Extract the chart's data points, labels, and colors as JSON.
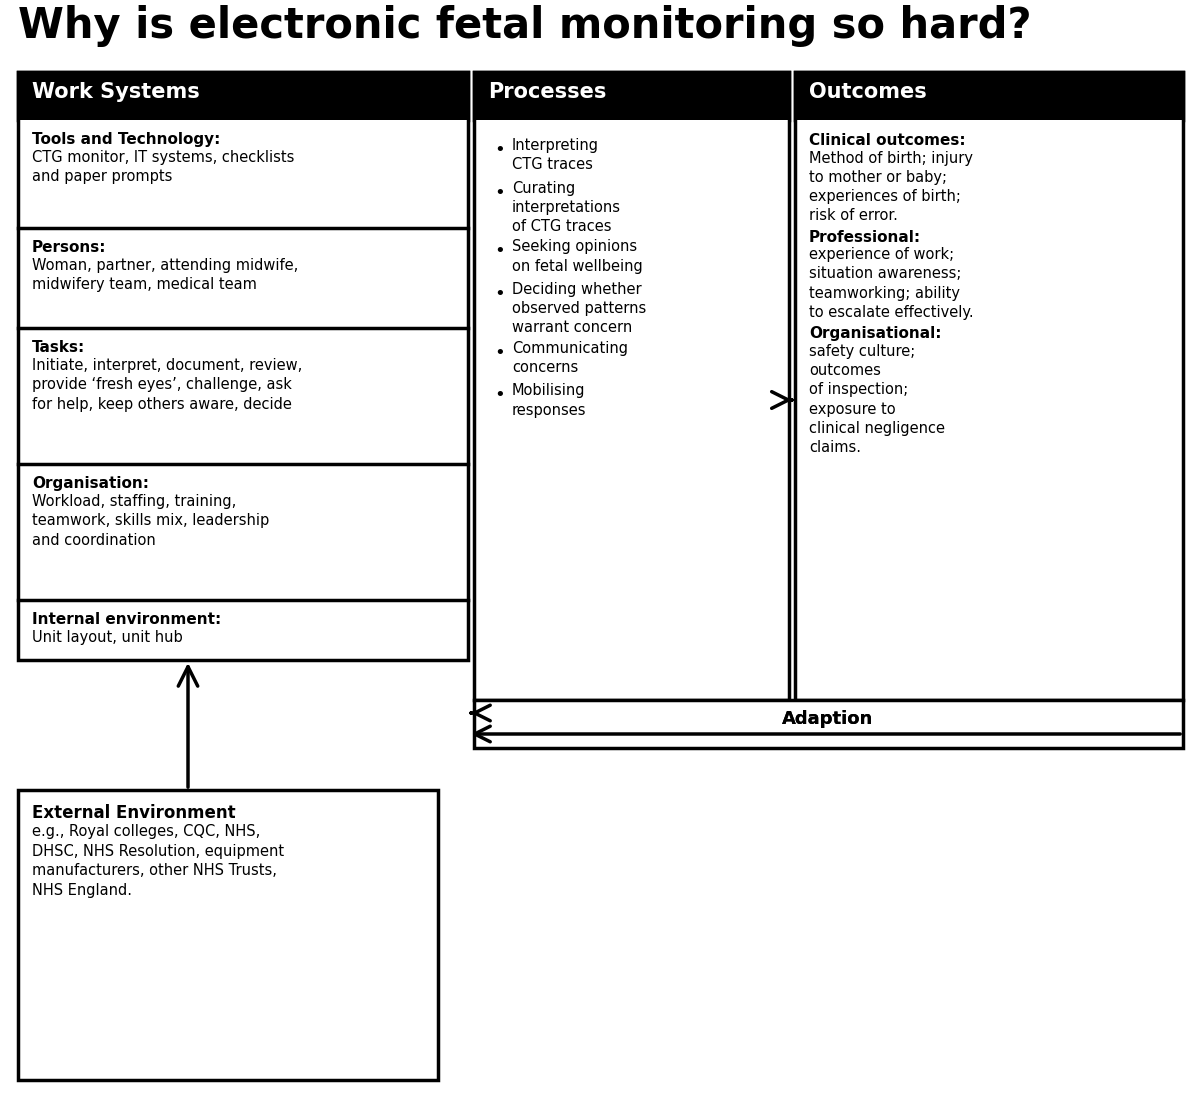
{
  "title": "Why is electronic fetal monitoring so hard?",
  "bg_color": "#ffffff",
  "black": "#000000",
  "white": "#ffffff",
  "col1_header": "Work Systems",
  "col2_header": "Processes",
  "col3_header": "Outcomes",
  "work_systems_boxes": [
    {
      "bold_label": "Tools and Technology:",
      "text": "CTG monitor, IT systems, checklists\nand paper prompts"
    },
    {
      "bold_label": "Persons:",
      "text": "Woman, partner, attending midwife,\nmidwifery team, medical team"
    },
    {
      "bold_label": "Tasks:",
      "text": "Initiate, interpret, document, review,\nprovide ‘fresh eyes’, challenge, ask\nfor help, keep others aware, decide"
    },
    {
      "bold_label": "Organisation:",
      "text": "Workload, staffing, training,\nteamwork, skills mix, leadership\nand coordination"
    },
    {
      "bold_label": "Internal environment:",
      "text": "Unit layout, unit hub"
    }
  ],
  "processes_items": [
    "Interpreting\nCTG traces",
    "Curating\ninterpretations\nof CTG traces",
    "Seeking opinions\non fetal wellbeing",
    "Deciding whether\nobserved patterns\nwarrant concern",
    "Communicating\nconcerns",
    "Mobilising\nresponses"
  ],
  "outcomes_boxes": [
    {
      "bold_label": "Clinical outcomes:",
      "text": "Method of birth; injury\nto mother or baby;\nexperiences of birth;\nrisk of error."
    },
    {
      "bold_label": "Professional:",
      "text": "experience of work;\nsituation awareness;\nteamworking; ability\nto escalate effectively."
    },
    {
      "bold_label": "Organisational:",
      "text": "safety culture;\noutcomes\nof inspection;\nexposure to\nclinical negligence\nclaims."
    }
  ],
  "external_env_bold": "External Environment",
  "external_env_text": "e.g., Royal colleges, CQC, NHS,\nDHSC, NHS Resolution, equipment\nmanufacturers, other NHS Trusts,\nNHS England.",
  "adaption_label": "Adaption",
  "title_fontsize": 30,
  "header_fontsize": 15,
  "label_fontsize": 11,
  "body_fontsize": 10.5,
  "adaption_fontsize": 13
}
